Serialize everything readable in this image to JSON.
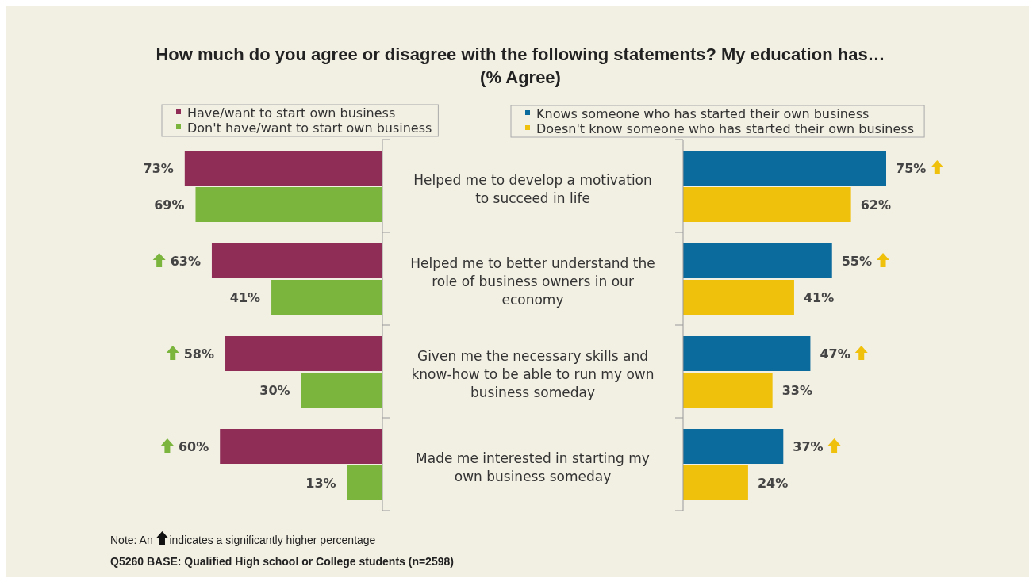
{
  "chart_data": [
    {
      "type": "bar",
      "orientation": "horizontal",
      "title": "How much do you agree or disagree with the following statements? My education has…\n(% Agree)",
      "categories": [
        "Helped me to develop a motivation to succeed in life",
        "Helped me to better understand the role of business owners in our economy",
        "Given me the necessary skills and know-how to be able to run my own business someday",
        "Made me interested in starting my own business someday"
      ],
      "legend": "top",
      "series": [
        {
          "name": "Have/want to start own business",
          "color": "#8f2d57",
          "values": [
            73,
            63,
            58,
            60
          ],
          "value_labels": [
            "73%",
            "63%",
            "58%",
            "60%"
          ]
        },
        {
          "name": "Don't have/want to start own business",
          "color": "#7bb53d",
          "values": [
            69,
            41,
            30,
            13
          ],
          "value_labels": [
            "69%",
            "41%",
            "30%",
            "13%"
          ]
        }
      ],
      "annotations": [
        "Note: An",
        "indicates a significantly higher percentage",
        "Q5260 BASE: Qualified High school or College students (n=2598)"
      ]
    },
    {
      "type": "bar",
      "orientation": "horizontal",
      "legend": "top",
      "series": [
        {
          "name": "Knows someone  who has started their own business",
          "color": "#0b6b9c",
          "values": [
            75,
            55,
            47,
            37
          ],
          "value_labels": [
            "75%",
            "55%",
            "47%",
            "37%"
          ]
        },
        {
          "name": "Doesn't know someone  who has started their own business",
          "color": "#f0c10c",
          "values": [
            62,
            41,
            33,
            24
          ],
          "value_labels": [
            "62%",
            "41%",
            "33%",
            "24%"
          ]
        }
      ]
    }
  ]
}
